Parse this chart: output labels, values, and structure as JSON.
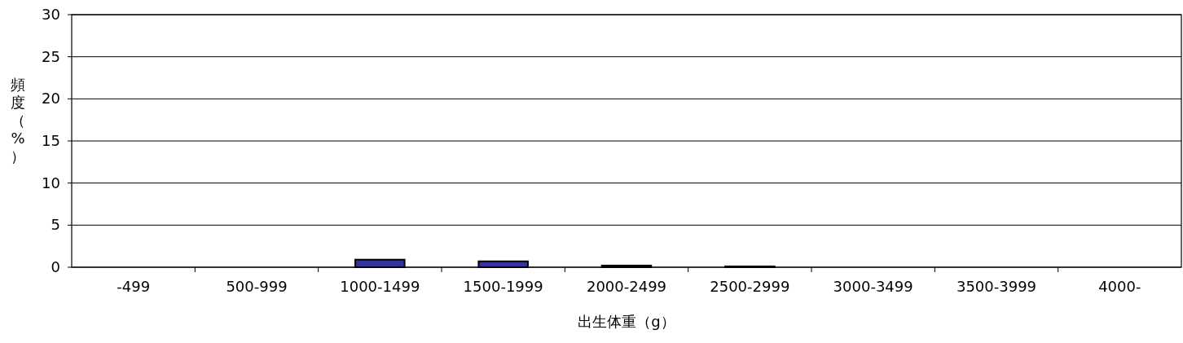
{
  "chart_data": {
    "type": "bar",
    "xlabel": "出生体重（g）",
    "ylabel": "頻度（%）",
    "categories": [
      "-499",
      "500-999",
      "1000-1499",
      "1500-1999",
      "2000-2499",
      "2500-2999",
      "3000-3499",
      "3500-3999",
      "4000-"
    ],
    "values": [
      0,
      0,
      0.9,
      0.7,
      0.2,
      0.1,
      0,
      0,
      0
    ],
    "color": "#333399",
    "ylim": [
      0,
      30
    ],
    "yticks": [
      0,
      5,
      10,
      15,
      20,
      25,
      30
    ],
    "grid": "y"
  }
}
